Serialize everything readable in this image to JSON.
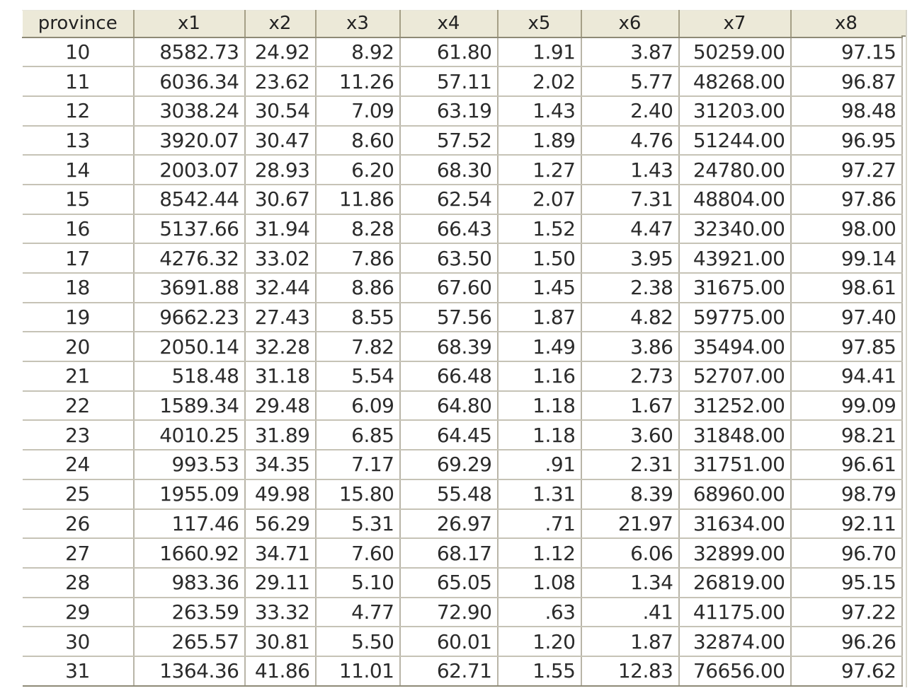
{
  "grid": {
    "columns": [
      "province",
      "x1",
      "x2",
      "x3",
      "x4",
      "x5",
      "x6",
      "x7",
      "x8"
    ],
    "rows": [
      [
        "10",
        "8582.73",
        "24.92",
        "8.92",
        "61.80",
        "1.91",
        "3.87",
        "50259.00",
        "97.15"
      ],
      [
        "11",
        "6036.34",
        "23.62",
        "11.26",
        "57.11",
        "2.02",
        "5.77",
        "48268.00",
        "96.87"
      ],
      [
        "12",
        "3038.24",
        "30.54",
        "7.09",
        "63.19",
        "1.43",
        "2.40",
        "31203.00",
        "98.48"
      ],
      [
        "13",
        "3920.07",
        "30.47",
        "8.60",
        "57.52",
        "1.89",
        "4.76",
        "51244.00",
        "96.95"
      ],
      [
        "14",
        "2003.07",
        "28.93",
        "6.20",
        "68.30",
        "1.27",
        "1.43",
        "24780.00",
        "97.27"
      ],
      [
        "15",
        "8542.44",
        "30.67",
        "11.86",
        "62.54",
        "2.07",
        "7.31",
        "48804.00",
        "97.86"
      ],
      [
        "16",
        "5137.66",
        "31.94",
        "8.28",
        "66.43",
        "1.52",
        "4.47",
        "32340.00",
        "98.00"
      ],
      [
        "17",
        "4276.32",
        "33.02",
        "7.86",
        "63.50",
        "1.50",
        "3.95",
        "43921.00",
        "99.14"
      ],
      [
        "18",
        "3691.88",
        "32.44",
        "8.86",
        "67.60",
        "1.45",
        "2.38",
        "31675.00",
        "98.61"
      ],
      [
        "19",
        "9662.23",
        "27.43",
        "8.55",
        "57.56",
        "1.87",
        "4.82",
        "59775.00",
        "97.40"
      ],
      [
        "20",
        "2050.14",
        "32.28",
        "7.82",
        "68.39",
        "1.49",
        "3.86",
        "35494.00",
        "97.85"
      ],
      [
        "21",
        "518.48",
        "31.18",
        "5.54",
        "66.48",
        "1.16",
        "2.73",
        "52707.00",
        "94.41"
      ],
      [
        "22",
        "1589.34",
        "29.48",
        "6.09",
        "64.80",
        "1.18",
        "1.67",
        "31252.00",
        "99.09"
      ],
      [
        "23",
        "4010.25",
        "31.89",
        "6.85",
        "64.45",
        "1.18",
        "3.60",
        "31848.00",
        "98.21"
      ],
      [
        "24",
        "993.53",
        "34.35",
        "7.17",
        "69.29",
        ".91",
        "2.31",
        "31751.00",
        "96.61"
      ],
      [
        "25",
        "1955.09",
        "49.98",
        "15.80",
        "55.48",
        "1.31",
        "8.39",
        "68960.00",
        "98.79"
      ],
      [
        "26",
        "117.46",
        "56.29",
        "5.31",
        "26.97",
        ".71",
        "21.97",
        "31634.00",
        "92.11"
      ],
      [
        "27",
        "1660.92",
        "34.71",
        "7.60",
        "68.17",
        "1.12",
        "6.06",
        "32899.00",
        "96.70"
      ],
      [
        "28",
        "983.36",
        "29.11",
        "5.10",
        "65.05",
        "1.08",
        "1.34",
        "26819.00",
        "95.15"
      ],
      [
        "29",
        "263.59",
        "33.32",
        "4.77",
        "72.90",
        ".63",
        ".41",
        "41175.00",
        "97.22"
      ],
      [
        "30",
        "265.57",
        "30.81",
        "5.50",
        "60.01",
        "1.20",
        "1.87",
        "32874.00",
        "96.26"
      ],
      [
        "31",
        "1364.36",
        "41.86",
        "11.01",
        "62.71",
        "1.55",
        "12.83",
        "76656.00",
        "97.62"
      ]
    ]
  }
}
